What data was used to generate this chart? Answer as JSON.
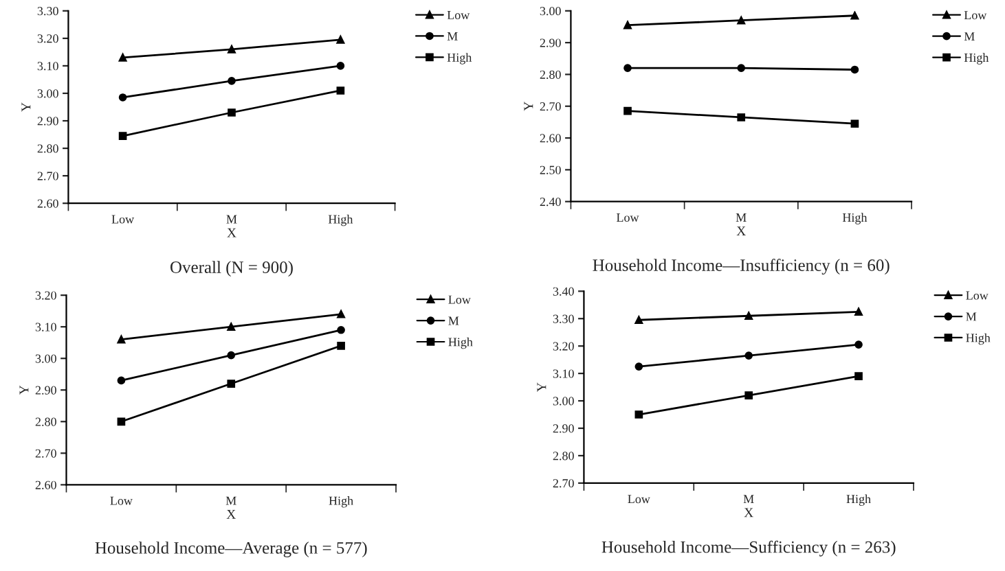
{
  "chart_data": [
    {
      "type": "line",
      "title": "Overall (N = 900)",
      "xlabel": "X",
      "ylabel": "Y",
      "categories": [
        "Low",
        "M",
        "High"
      ],
      "ylim": [
        2.6,
        3.3
      ],
      "yticks": [
        {
          "value": 2.6,
          "label": "2.60"
        },
        {
          "value": 2.7,
          "label": "2.70"
        },
        {
          "value": 2.8,
          "label": "2.80"
        },
        {
          "value": 2.9,
          "label": "2.90"
        },
        {
          "value": 3.0,
          "label": "3.00"
        },
        {
          "value": 3.1,
          "label": "3.10"
        },
        {
          "value": 3.2,
          "label": "3.20"
        },
        {
          "value": 3.3,
          "label": "3.30"
        }
      ],
      "legend": "top right",
      "series": [
        {
          "name": "Low",
          "color": "#000000",
          "marker": "triangle",
          "values": [
            3.13,
            3.16,
            3.195
          ]
        },
        {
          "name": "M",
          "color": "#000000",
          "marker": "circle",
          "values": [
            2.985,
            3.045,
            3.1
          ]
        },
        {
          "name": "High",
          "color": "#000000",
          "marker": "square",
          "values": [
            2.845,
            2.93,
            3.01
          ]
        }
      ]
    },
    {
      "type": "line",
      "title": "Household Income—Insufficiency (n = 60)",
      "xlabel": "X",
      "ylabel": "Y",
      "categories": [
        "Low",
        "M",
        "High"
      ],
      "ylim": [
        2.4,
        3.0
      ],
      "yticks": [
        {
          "value": 2.4,
          "label": "2.40"
        },
        {
          "value": 2.5,
          "label": "2.50"
        },
        {
          "value": 2.6,
          "label": "2.60"
        },
        {
          "value": 2.7,
          "label": "2.70"
        },
        {
          "value": 2.8,
          "label": "2.80"
        },
        {
          "value": 2.9,
          "label": "2.90"
        },
        {
          "value": 3.0,
          "label": "3.00"
        }
      ],
      "legend": "top right",
      "series": [
        {
          "name": "Low",
          "color": "#000000",
          "marker": "triangle",
          "values": [
            2.955,
            2.97,
            2.985
          ]
        },
        {
          "name": "M",
          "color": "#000000",
          "marker": "circle",
          "values": [
            2.82,
            2.82,
            2.815
          ]
        },
        {
          "name": "High",
          "color": "#000000",
          "marker": "square",
          "values": [
            2.685,
            2.665,
            2.645
          ]
        }
      ]
    },
    {
      "type": "line",
      "title": "Household Income—Average (n = 577)",
      "xlabel": "X",
      "ylabel": "Y",
      "categories": [
        "Low",
        "M",
        "High"
      ],
      "ylim": [
        2.6,
        3.2
      ],
      "yticks": [
        {
          "value": 2.6,
          "label": "2.60"
        },
        {
          "value": 2.7,
          "label": "2.70"
        },
        {
          "value": 2.8,
          "label": "2.80"
        },
        {
          "value": 2.9,
          "label": "2.90"
        },
        {
          "value": 3.0,
          "label": "3.00"
        },
        {
          "value": 3.1,
          "label": "3.10"
        },
        {
          "value": 3.2,
          "label": "3.20"
        }
      ],
      "legend": "top right",
      "series": [
        {
          "name": "Low",
          "color": "#000000",
          "marker": "triangle",
          "values": [
            3.06,
            3.1,
            3.14
          ]
        },
        {
          "name": "M",
          "color": "#000000",
          "marker": "circle",
          "values": [
            2.93,
            3.01,
            3.09
          ]
        },
        {
          "name": "High",
          "color": "#000000",
          "marker": "square",
          "values": [
            2.8,
            2.92,
            3.04
          ]
        }
      ]
    },
    {
      "type": "line",
      "title": "Household Income—Sufficiency (n = 263)",
      "xlabel": "X",
      "ylabel": "Y",
      "categories": [
        "Low",
        "M",
        "High"
      ],
      "ylim": [
        2.7,
        3.4
      ],
      "yticks": [
        {
          "value": 2.7,
          "label": "2.70"
        },
        {
          "value": 2.8,
          "label": "2.80"
        },
        {
          "value": 2.9,
          "label": "2.90"
        },
        {
          "value": 3.0,
          "label": "3.00"
        },
        {
          "value": 3.1,
          "label": "3.10"
        },
        {
          "value": 3.2,
          "label": "3.20"
        },
        {
          "value": 3.3,
          "label": "3.30"
        },
        {
          "value": 3.4,
          "label": "3.40"
        }
      ],
      "legend": "top right",
      "series": [
        {
          "name": "Low",
          "color": "#000000",
          "marker": "triangle",
          "values": [
            3.295,
            3.31,
            3.325
          ]
        },
        {
          "name": "M",
          "color": "#000000",
          "marker": "circle",
          "values": [
            3.125,
            3.165,
            3.205
          ]
        },
        {
          "name": "High",
          "color": "#000000",
          "marker": "square",
          "values": [
            2.95,
            3.02,
            3.09
          ]
        }
      ]
    }
  ]
}
